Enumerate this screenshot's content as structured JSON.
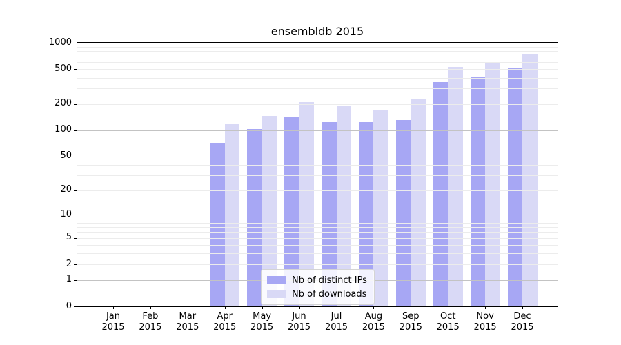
{
  "chart_data": {
    "type": "bar",
    "title": "ensembldb 2015",
    "categories": [
      "Jan",
      "Feb",
      "Mar",
      "Apr",
      "May",
      "Jun",
      "Jul",
      "Aug",
      "Sep",
      "Oct",
      "Nov",
      "Dec"
    ],
    "year_label": "2015",
    "series": [
      {
        "name": "Nb of distinct IPs",
        "color": "#a7a7f4",
        "values": [
          0,
          0,
          0,
          72,
          104,
          141,
          125,
          124,
          131,
          357,
          401,
          508
        ]
      },
      {
        "name": "Nb of downloads",
        "color": "#d9d9f6",
        "values": [
          0,
          0,
          0,
          118,
          145,
          209,
          190,
          170,
          228,
          527,
          585,
          747
        ]
      }
    ],
    "xlabel": "",
    "ylabel": "",
    "y_axis": {
      "scale": "log1p",
      "ticks": [
        0,
        1,
        2,
        5,
        10,
        20,
        50,
        100,
        200,
        500,
        1000
      ],
      "ylim": [
        0,
        1000
      ],
      "major_gridlines": [
        1,
        10,
        100
      ],
      "minor_gridlines": [
        2,
        3,
        4,
        5,
        6,
        7,
        8,
        9,
        20,
        30,
        40,
        50,
        60,
        70,
        80,
        90,
        200,
        300,
        400,
        500,
        600,
        700,
        800,
        900
      ]
    },
    "legend": {
      "position": "lower center"
    },
    "colors": {
      "background": "#ffffff",
      "spine": "#000000",
      "major_grid": "#c3c3c3",
      "minor_grid": "#ececec"
    }
  }
}
